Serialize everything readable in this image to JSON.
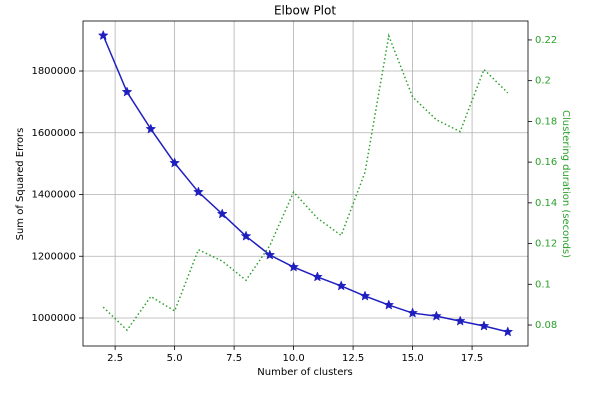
{
  "chart_data": {
    "type": "line",
    "title": "Elbow Plot",
    "x_label": "Number of clusters",
    "y_label": "Sum of Squared Errors",
    "y2_label": "Clustering duration (seconds)",
    "x": [
      2,
      3,
      4,
      5,
      6,
      7,
      8,
      9,
      10,
      11,
      12,
      13,
      14,
      15,
      16,
      17,
      18,
      19
    ],
    "series": [
      {
        "color": "#1f1fbf",
        "marker": "star",
        "linestyle": "solid",
        "axis": "y",
        "values": [
          1915000,
          1732000,
          1612000,
          1502000,
          1408000,
          1337000,
          1265000,
          1204000,
          1165000,
          1133000,
          1104000,
          1071000,
          1042000,
          1016000,
          1006000,
          990000,
          974000,
          955000
        ]
      },
      {
        "color": "#2ca02c",
        "linestyle": "dotted",
        "axis": "y2",
        "values": [
          0.0888,
          0.0775,
          0.094,
          0.0869,
          0.117,
          0.1114,
          0.102,
          0.119,
          0.1453,
          0.1325,
          0.124,
          0.155,
          0.222,
          0.192,
          0.1808,
          0.175,
          0.2055,
          0.194
        ]
      }
    ],
    "xlim": [
      1.15,
      19.85
    ],
    "xticks": [
      2.5,
      {
        "value": 5,
        "label": "5.0"
      },
      7.5,
      {
        "value": 10,
        "label": "10.0"
      },
      12.5,
      {
        "value": 15,
        "label": "15.0"
      },
      17.5
    ],
    "ylim": [
      909300,
      1962000
    ],
    "yticks": [
      1000000,
      1200000,
      1400000,
      1600000,
      1800000
    ],
    "y2lim": [
      0.0697,
      0.2293
    ],
    "y2ticks": [
      0.08,
      0.1,
      0.12,
      0.14,
      0.16,
      0.18,
      0.2,
      0.22
    ],
    "y2_color": "#2ca02c",
    "grid": true
  }
}
